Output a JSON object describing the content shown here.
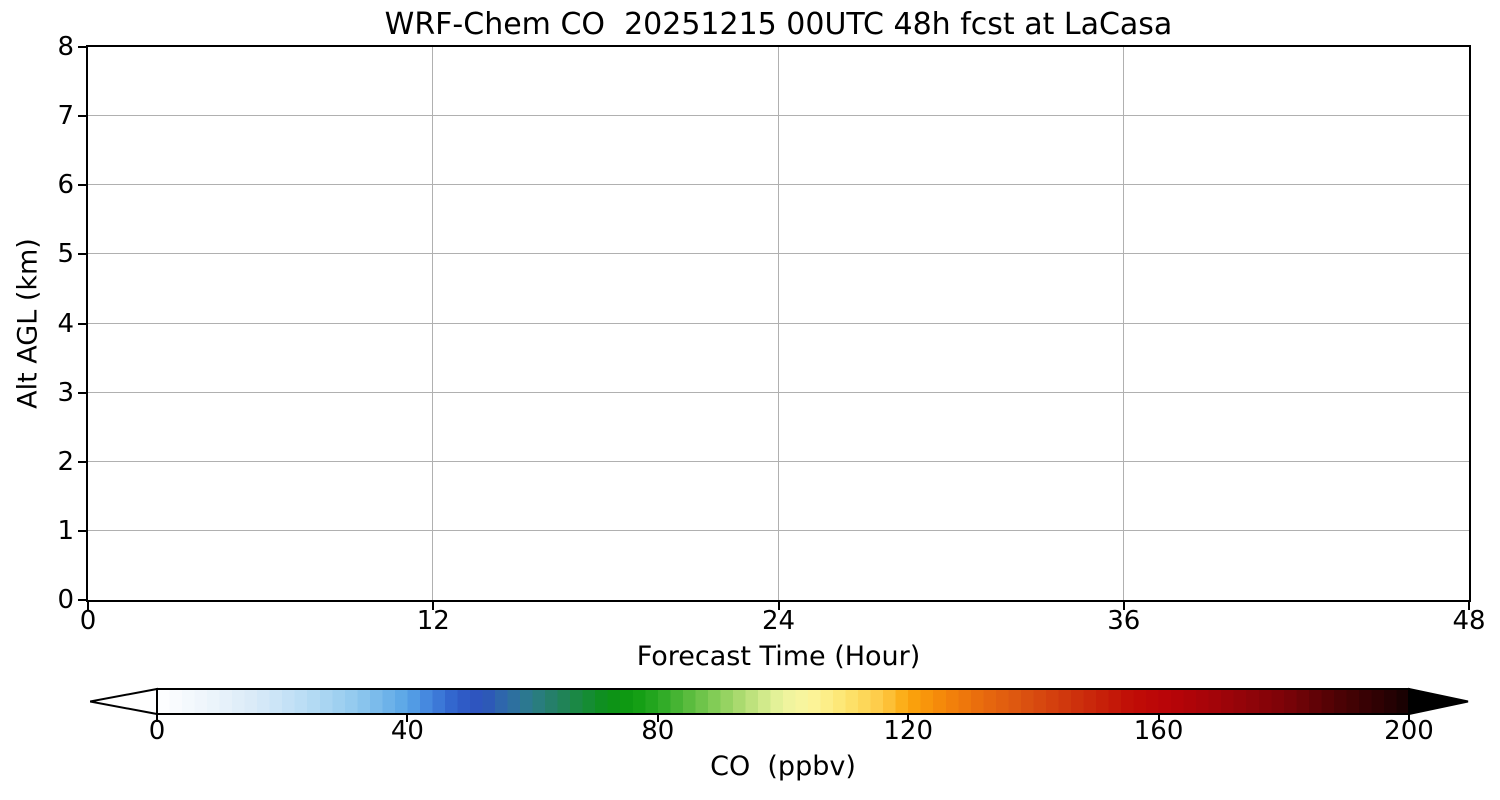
{
  "chart_data": {
    "type": "heatmap",
    "title": "WRF-Chem CO  20251215 00UTC 48h fcst at LaCasa",
    "xlabel": "Forecast Time (Hour)",
    "ylabel": "Alt AGL (km)",
    "xlim": [
      0,
      48
    ],
    "ylim": [
      0,
      8
    ],
    "x_ticks": [
      0,
      12,
      24,
      36,
      48
    ],
    "y_ticks": [
      0,
      1,
      2,
      3,
      4,
      5,
      6,
      7,
      8
    ],
    "grid": true,
    "values": [],
    "note": "plot area is empty; no CO field rendered",
    "colorbar": {
      "label": "CO  (ppbv)",
      "ticks": [
        0,
        40,
        80,
        120,
        160,
        200
      ],
      "vmin": 0,
      "vmax": 200,
      "n_segments": 100,
      "extend": "both",
      "extend_under_color": "#ffffff",
      "extend_over_color": "#000000",
      "stops": [
        [
          0,
          "#ffffff"
        ],
        [
          8,
          "#eef5fb"
        ],
        [
          16,
          "#d8eaf8"
        ],
        [
          24,
          "#b8dcf4"
        ],
        [
          32,
          "#90c8ee"
        ],
        [
          40,
          "#58a4e6"
        ],
        [
          44,
          "#4080dc"
        ],
        [
          48,
          "#2f5ec9"
        ],
        [
          52,
          "#2d52bc"
        ],
        [
          56,
          "#2e6ca6"
        ],
        [
          60,
          "#2b7c88"
        ],
        [
          64,
          "#238060"
        ],
        [
          68,
          "#188a3c"
        ],
        [
          72,
          "#0c9018"
        ],
        [
          76,
          "#0e9c10"
        ],
        [
          80,
          "#28a822"
        ],
        [
          84,
          "#50b838"
        ],
        [
          88,
          "#78c850"
        ],
        [
          92,
          "#a0d668"
        ],
        [
          96,
          "#c8e684"
        ],
        [
          100,
          "#ecf49e"
        ],
        [
          104,
          "#fbf59e"
        ],
        [
          108,
          "#fdec80"
        ],
        [
          112,
          "#fddc60"
        ],
        [
          116,
          "#fec844"
        ],
        [
          120,
          "#fba60c"
        ],
        [
          126,
          "#f4840a"
        ],
        [
          132,
          "#e86a0e"
        ],
        [
          138,
          "#dc5410"
        ],
        [
          144,
          "#d23c0e"
        ],
        [
          150,
          "#c8240a"
        ],
        [
          156,
          "#c00c06"
        ],
        [
          162,
          "#b80408"
        ],
        [
          170,
          "#a00409"
        ],
        [
          180,
          "#7c0308"
        ],
        [
          188,
          "#500205"
        ],
        [
          196,
          "#2a0103"
        ],
        [
          200,
          "#150101"
        ]
      ]
    }
  },
  "colors": {
    "background": "#ffffff",
    "axis": "#000000",
    "grid": "#b0b0b0",
    "text": "#000000"
  }
}
